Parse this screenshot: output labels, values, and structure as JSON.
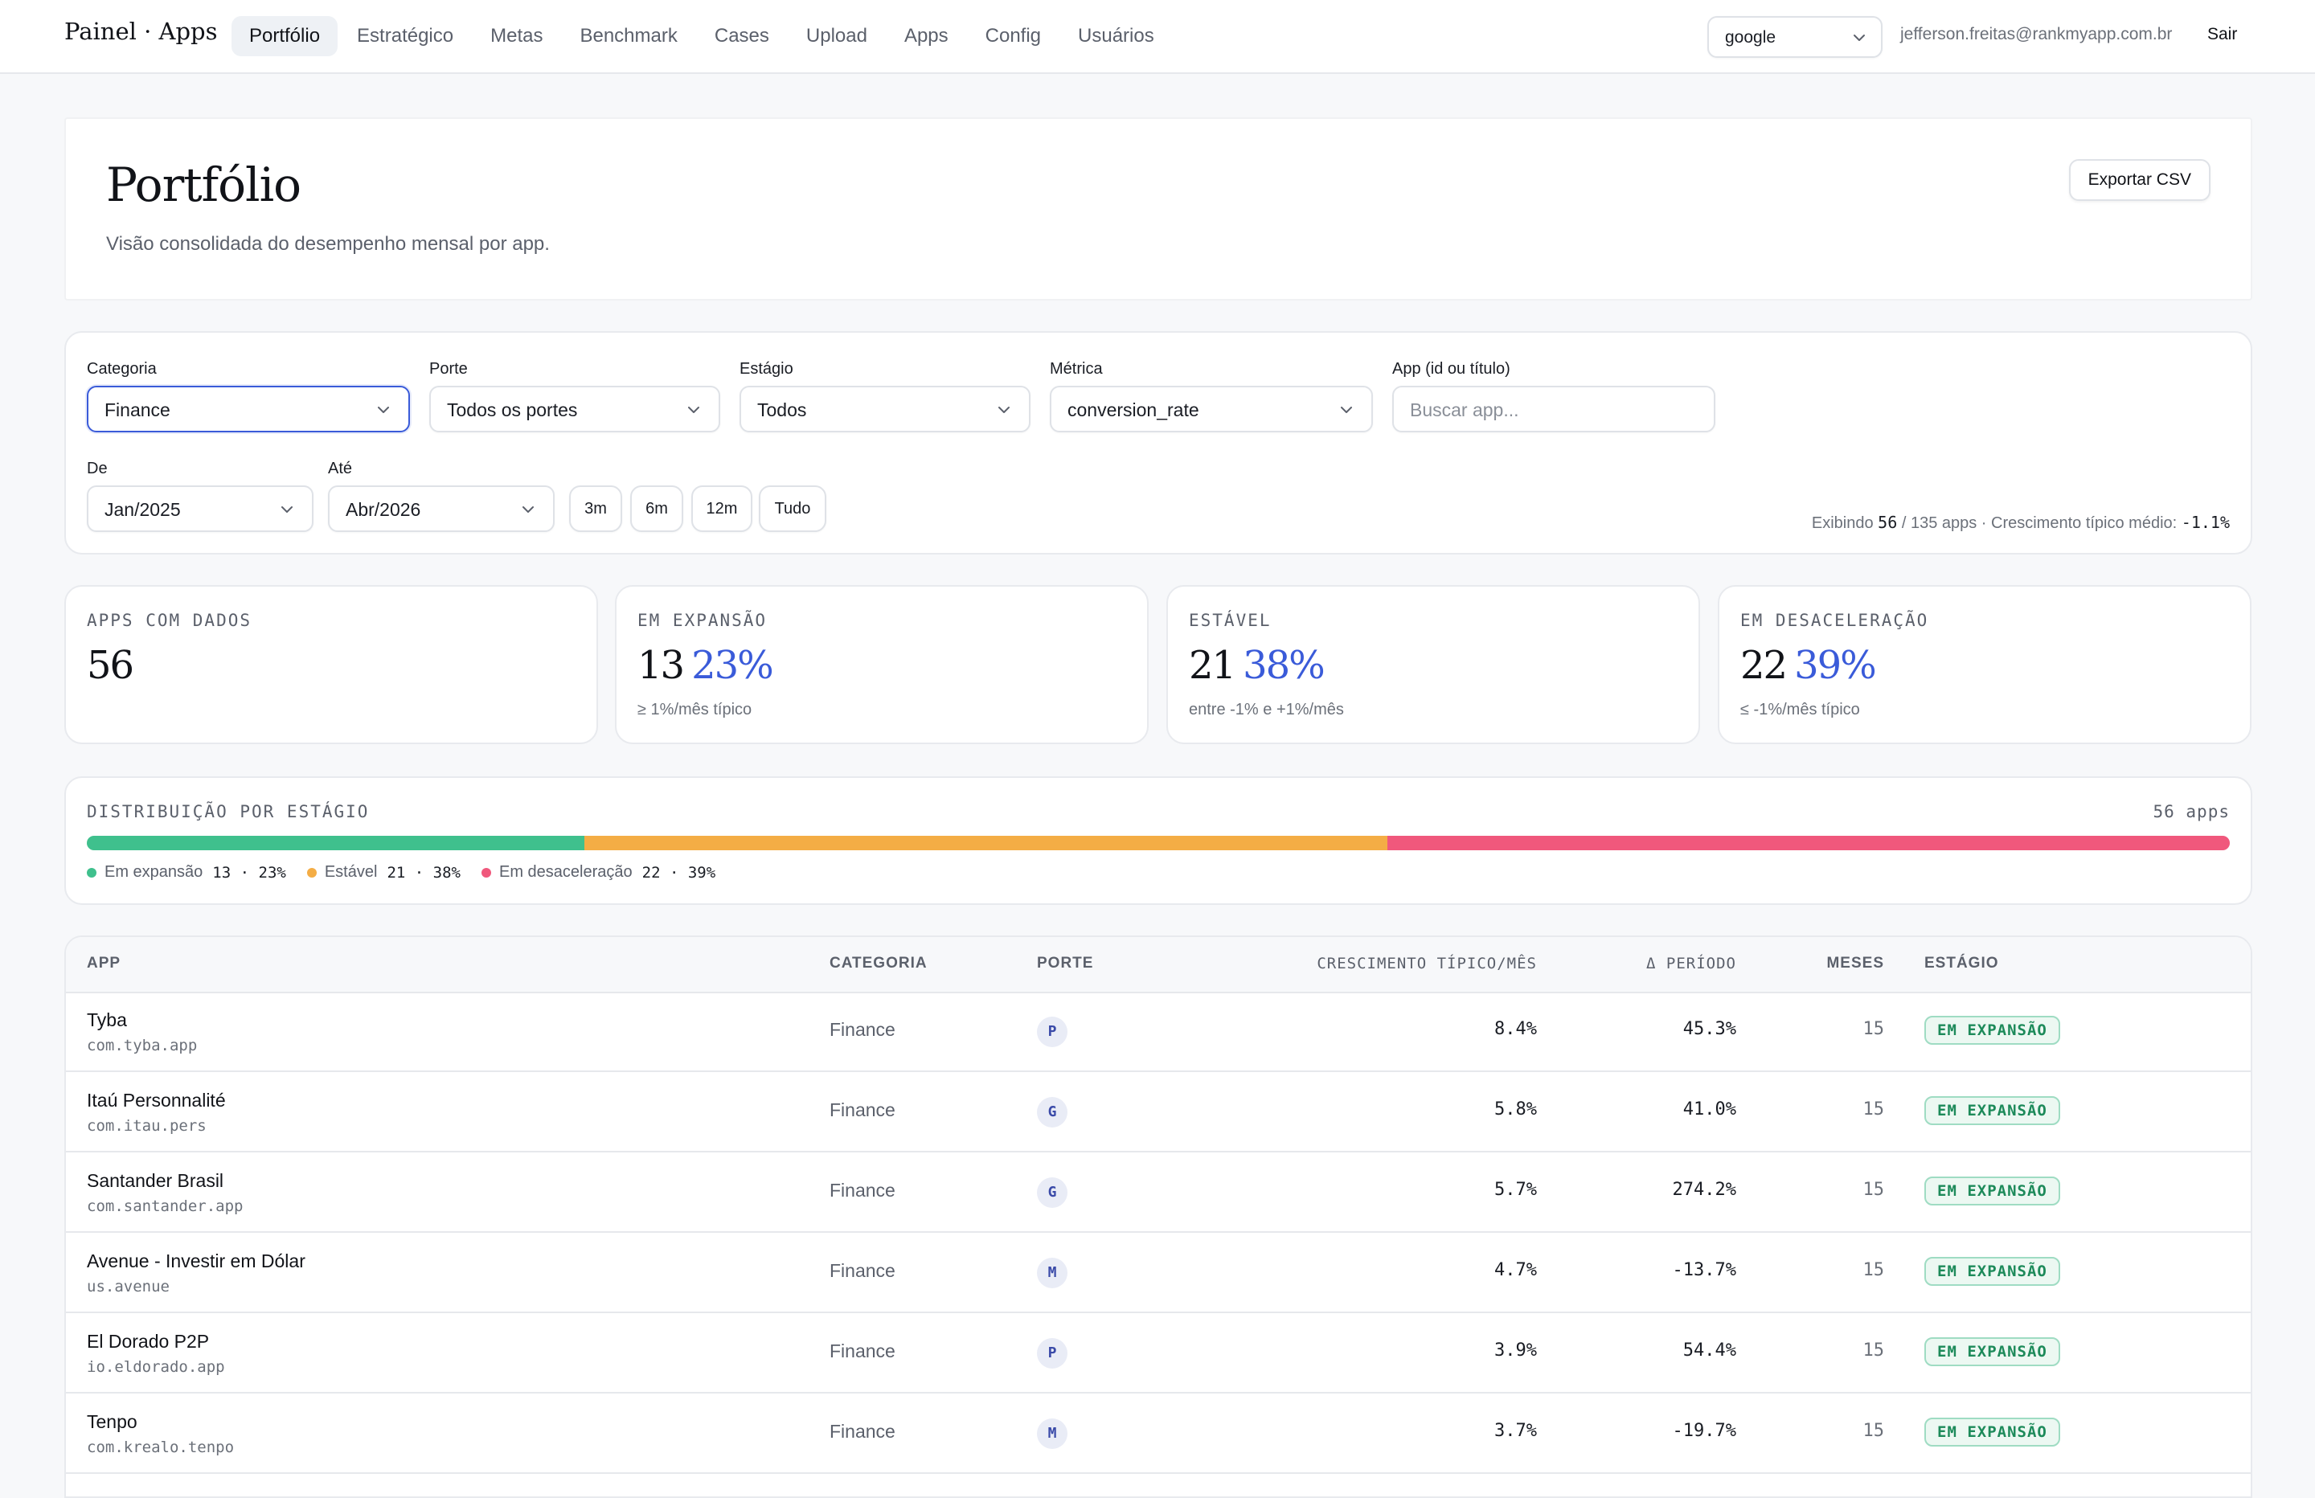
{
  "brand": "Painel · Apps",
  "nav": {
    "items": [
      {
        "label": "Portfólio",
        "active": true
      },
      {
        "label": "Estratégico"
      },
      {
        "label": "Metas"
      },
      {
        "label": "Benchmark"
      },
      {
        "label": "Cases"
      },
      {
        "label": "Upload"
      },
      {
        "label": "Apps"
      },
      {
        "label": "Config"
      },
      {
        "label": "Usuários"
      }
    ]
  },
  "account": {
    "store": "google",
    "email": "jefferson.freitas@rankmyapp.com.br",
    "logout": "Sair"
  },
  "page": {
    "title": "Portfólio",
    "subtitle": "Visão consolidada do desempenho mensal por app.",
    "export_label": "Exportar CSV"
  },
  "filters": {
    "categoria": {
      "label": "Categoria",
      "value": "Finance"
    },
    "porte": {
      "label": "Porte",
      "value": "Todos os portes"
    },
    "estagio": {
      "label": "Estágio",
      "value": "Todos"
    },
    "metrica": {
      "label": "Métrica",
      "value": "conversion_rate"
    },
    "app": {
      "label": "App (id ou título)",
      "placeholder": "Buscar app..."
    },
    "de": {
      "label": "De",
      "value": "Jan/2025"
    },
    "ate": {
      "label": "Até",
      "value": "Abr/2026"
    },
    "ranges": [
      "3m",
      "6m",
      "12m",
      "Tudo"
    ],
    "summary": {
      "prefix": "Exibindo",
      "shown": "56",
      "total": "/ 135 apps · Crescimento típico médio:",
      "avg_growth": "-1.1%"
    }
  },
  "stats": [
    {
      "label": "APPS COM DADOS",
      "value": "56",
      "pct": "",
      "note": ""
    },
    {
      "label": "EM EXPANSÃO",
      "value": "13",
      "pct": "23%",
      "note": "≥ 1%/mês típico"
    },
    {
      "label": "ESTÁVEL",
      "value": "21",
      "pct": "38%",
      "note": "entre -1% e +1%/mês"
    },
    {
      "label": "EM DESACELERAÇÃO",
      "value": "22",
      "pct": "39%",
      "note": "≤ -1%/mês típico"
    }
  ],
  "distribution": {
    "title": "DISTRIBUIÇÃO POR ESTÁGIO",
    "count": "56 apps",
    "segments": [
      {
        "name": "Em expansão",
        "count": 13,
        "pct": "23%",
        "share": 0.232,
        "color": "#3fc08d"
      },
      {
        "name": "Estável",
        "count": 21,
        "pct": "38%",
        "share": 0.375,
        "color": "#f4ad45"
      },
      {
        "name": "Em desaceleração",
        "count": 22,
        "pct": "39%",
        "share": 0.393,
        "color": "#f0587c"
      }
    ]
  },
  "table": {
    "headers": {
      "app": "APP",
      "categoria": "CATEGORIA",
      "porte": "PORTE",
      "growth": "CRESCIMENTO TÍPICO/MÊS",
      "delta": "Δ PERÍODO",
      "meses": "MESES",
      "estagio": "ESTÁGIO"
    },
    "rows": [
      {
        "name": "Tyba",
        "id": "com.tyba.app",
        "categoria": "Finance",
        "porte": "P",
        "growth": "8.4%",
        "delta": "45.3%",
        "meses": "15",
        "estagio": "EM EXPANSÃO"
      },
      {
        "name": "Itaú Personnalité",
        "id": "com.itau.pers",
        "categoria": "Finance",
        "porte": "G",
        "growth": "5.8%",
        "delta": "41.0%",
        "meses": "15",
        "estagio": "EM EXPANSÃO"
      },
      {
        "name": "Santander Brasil",
        "id": "com.santander.app",
        "categoria": "Finance",
        "porte": "G",
        "growth": "5.7%",
        "delta": "274.2%",
        "meses": "15",
        "estagio": "EM EXPANSÃO"
      },
      {
        "name": "Avenue - Investir em Dólar",
        "id": "us.avenue",
        "categoria": "Finance",
        "porte": "M",
        "growth": "4.7%",
        "delta": "-13.7%",
        "meses": "15",
        "estagio": "EM EXPANSÃO"
      },
      {
        "name": "El Dorado P2P",
        "id": "io.eldorado.app",
        "categoria": "Finance",
        "porte": "P",
        "growth": "3.9%",
        "delta": "54.4%",
        "meses": "15",
        "estagio": "EM EXPANSÃO"
      },
      {
        "name": "Tenpo",
        "id": "com.krealo.tenpo",
        "categoria": "Finance",
        "porte": "M",
        "growth": "3.7%",
        "delta": "-19.7%",
        "meses": "15",
        "estagio": "EM EXPANSÃO"
      }
    ]
  }
}
